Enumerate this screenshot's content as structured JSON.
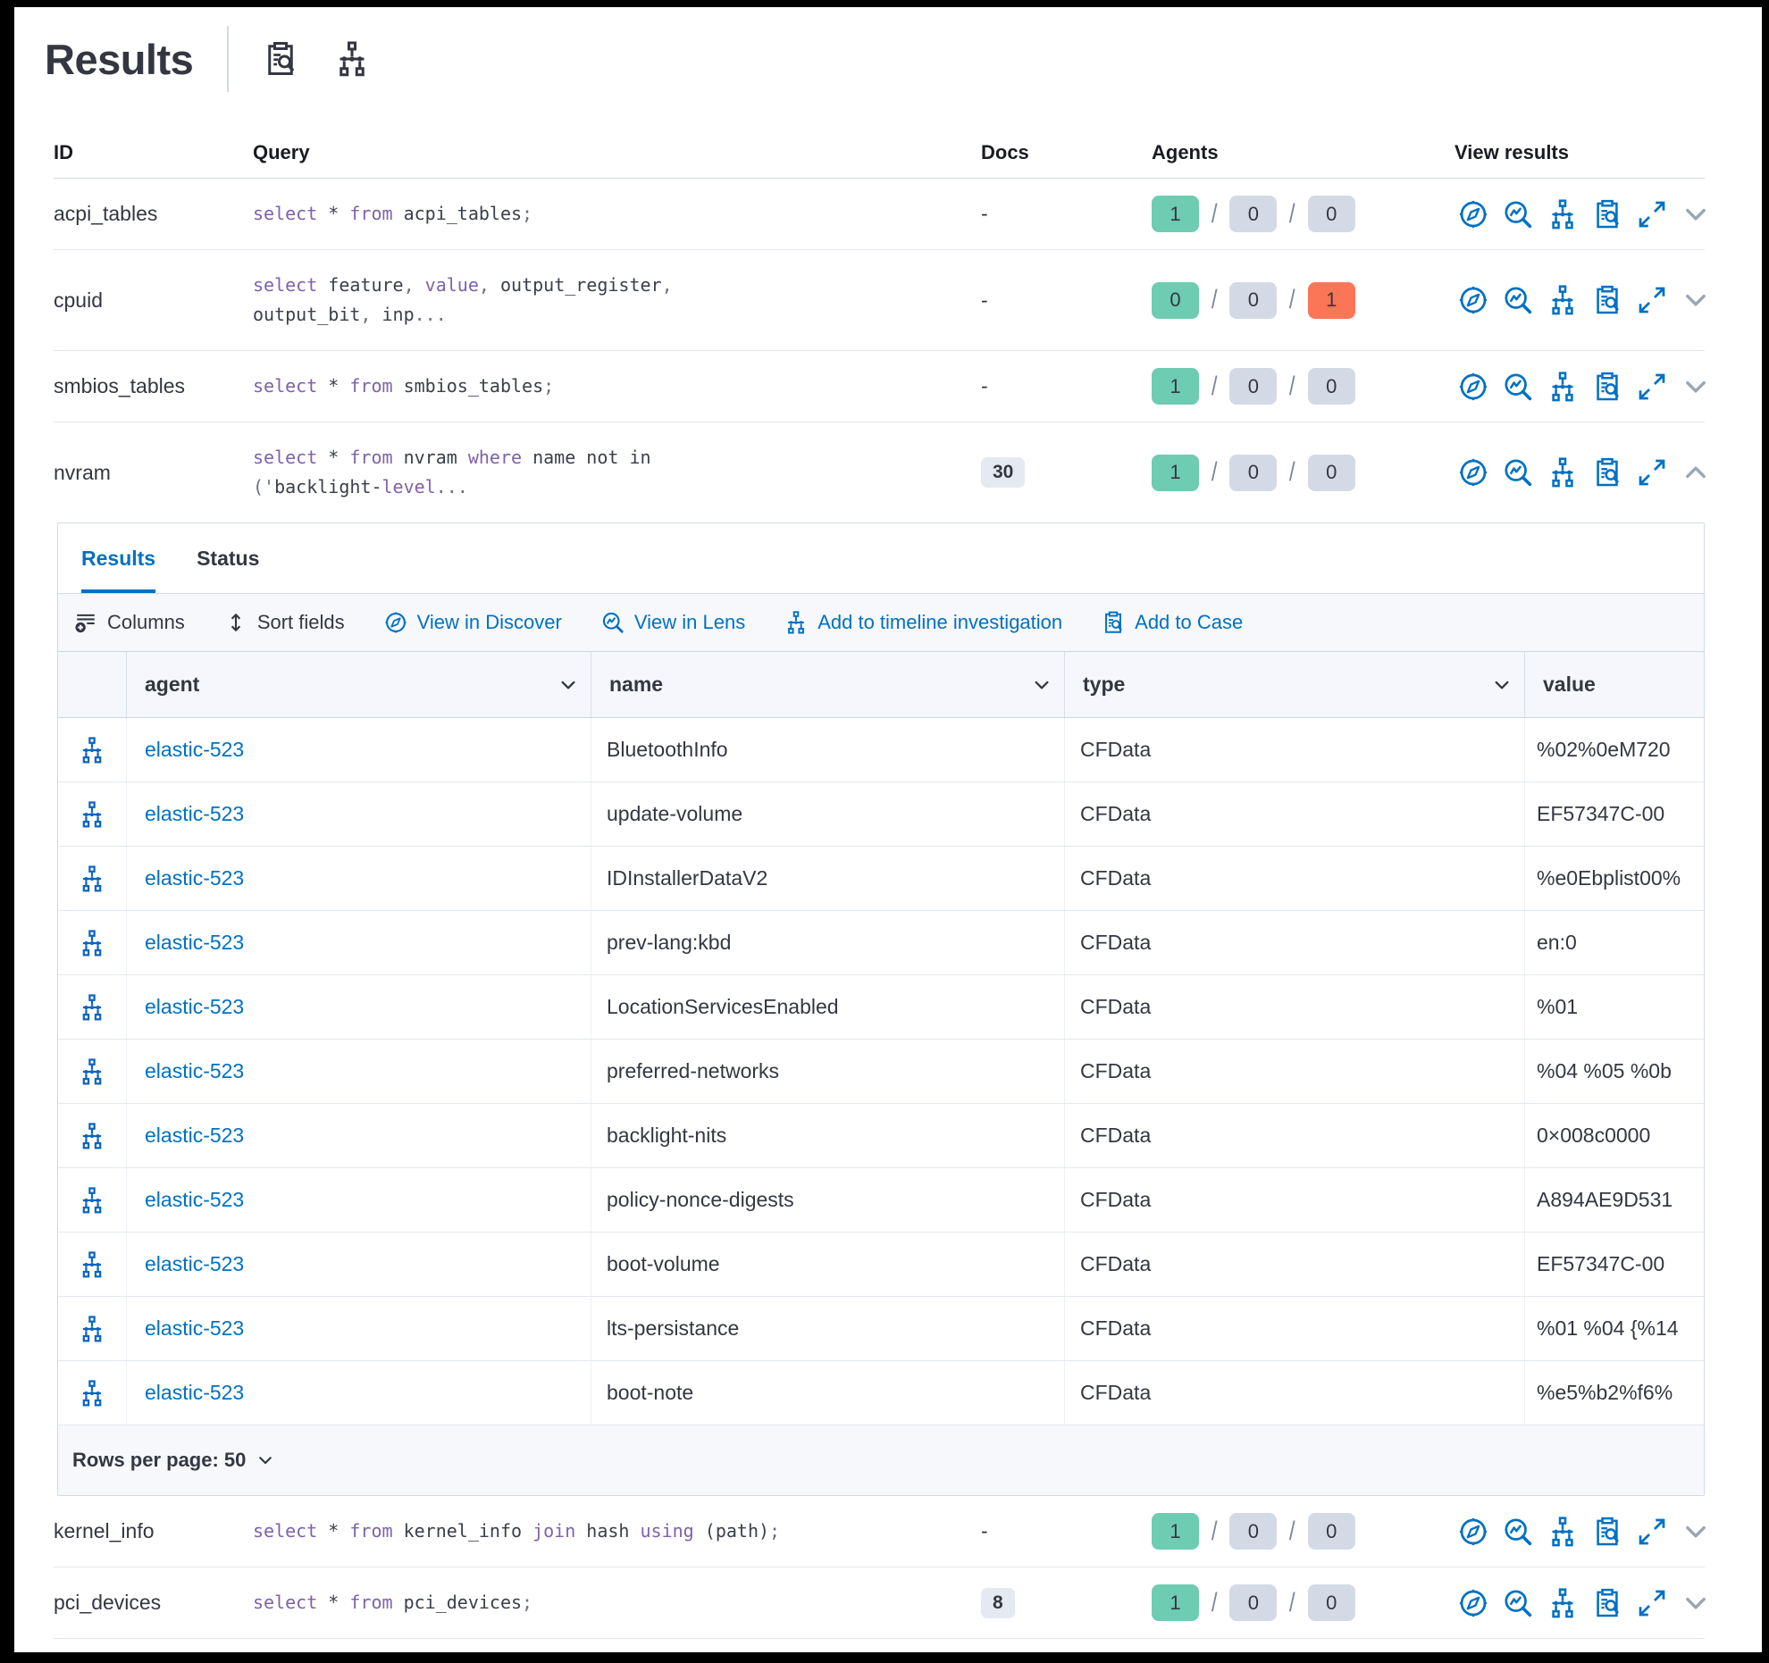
{
  "header": {
    "title": "Results",
    "inspect_icon": "inspect-clipboard-search",
    "tree_icon": "timeline-tree"
  },
  "outer_table": {
    "headers": {
      "id": "ID",
      "query": "Query",
      "docs": "Docs",
      "agents": "Agents",
      "view": "View results"
    }
  },
  "queries": [
    {
      "id": "acpi_tables",
      "docs": "-",
      "agents": {
        "ok": "1",
        "pending": "0",
        "failed": "0",
        "failed_variant": "gray"
      },
      "line1": [
        {
          "t": "select",
          "c": "kw"
        },
        {
          "t": " * ",
          "c": "id"
        },
        {
          "t": "from",
          "c": "kw"
        },
        {
          "t": " acpi_tables",
          "c": "id"
        },
        {
          "t": ";",
          "c": "pun"
        }
      ]
    },
    {
      "id": "cpuid",
      "docs": "-",
      "agents": {
        "ok": "0",
        "pending": "0",
        "failed": "1",
        "failed_variant": "danger"
      },
      "line1": [
        {
          "t": "select",
          "c": "kw"
        },
        {
          "t": " feature",
          "c": "id"
        },
        {
          "t": ", ",
          "c": "pun"
        },
        {
          "t": "value",
          "c": "kw"
        },
        {
          "t": ", ",
          "c": "pun"
        },
        {
          "t": "output_register",
          "c": "id"
        },
        {
          "t": ",",
          "c": "pun"
        }
      ],
      "line2": [
        {
          "t": "output_bit",
          "c": "id"
        },
        {
          "t": ", ",
          "c": "pun"
        },
        {
          "t": "inp",
          "c": "id"
        },
        {
          "t": "...",
          "c": "pun"
        }
      ]
    },
    {
      "id": "smbios_tables",
      "docs": "-",
      "agents": {
        "ok": "1",
        "pending": "0",
        "failed": "0",
        "failed_variant": "gray"
      },
      "line1": [
        {
          "t": "select",
          "c": "kw"
        },
        {
          "t": " * ",
          "c": "id"
        },
        {
          "t": "from",
          "c": "kw"
        },
        {
          "t": " smbios_tables",
          "c": "id"
        },
        {
          "t": ";",
          "c": "pun"
        }
      ]
    },
    {
      "id": "nvram",
      "docs": "30",
      "agents": {
        "ok": "1",
        "pending": "0",
        "failed": "0",
        "failed_variant": "gray"
      },
      "line1": [
        {
          "t": "select",
          "c": "kw"
        },
        {
          "t": " * ",
          "c": "id"
        },
        {
          "t": "from",
          "c": "kw"
        },
        {
          "t": " nvram ",
          "c": "id"
        },
        {
          "t": "where",
          "c": "kw"
        },
        {
          "t": " name not in",
          "c": "id"
        }
      ],
      "line2": [
        {
          "t": "('",
          "c": "pun"
        },
        {
          "t": "backlight-",
          "c": "id"
        },
        {
          "t": "level",
          "c": "kw"
        },
        {
          "t": "...",
          "c": "pun"
        }
      ]
    },
    {
      "id": "kernel_info",
      "docs": "-",
      "agents": {
        "ok": "1",
        "pending": "0",
        "failed": "0",
        "failed_variant": "gray"
      },
      "line1": [
        {
          "t": "select",
          "c": "kw"
        },
        {
          "t": " * ",
          "c": "id"
        },
        {
          "t": "from",
          "c": "kw"
        },
        {
          "t": " kernel_info ",
          "c": "id"
        },
        {
          "t": "join",
          "c": "kw"
        },
        {
          "t": " hash ",
          "c": "id"
        },
        {
          "t": "using",
          "c": "kw"
        },
        {
          "t": " (path)",
          "c": "id"
        },
        {
          "t": ";",
          "c": "pun"
        }
      ]
    },
    {
      "id": "pci_devices",
      "docs": "8",
      "agents": {
        "ok": "1",
        "pending": "0",
        "failed": "0",
        "failed_variant": "gray"
      },
      "line1": [
        {
          "t": "select",
          "c": "kw"
        },
        {
          "t": " * ",
          "c": "id"
        },
        {
          "t": "from",
          "c": "kw"
        },
        {
          "t": " pci_devices",
          "c": "id"
        },
        {
          "t": ";",
          "c": "pun"
        }
      ]
    }
  ],
  "panel": {
    "tabs": {
      "results": "Results",
      "status": "Status"
    },
    "toolbar": {
      "columns": "Columns",
      "sort_fields": "Sort fields",
      "view_discover": "View in Discover",
      "view_lens": "View in Lens",
      "add_timeline": "Add to timeline investigation",
      "add_case": "Add to Case"
    },
    "grid": {
      "headers": {
        "agent": "agent",
        "name": "name",
        "type": "type",
        "value": "value"
      },
      "rows": [
        {
          "agent": "elastic-523",
          "name": "BluetoothInfo",
          "type": "CFData",
          "value": "%02%0eM720"
        },
        {
          "agent": "elastic-523",
          "name": "update-volume",
          "type": "CFData",
          "value": "EF57347C-00"
        },
        {
          "agent": "elastic-523",
          "name": "IDInstallerDataV2",
          "type": "CFData",
          "value": "%e0Ebplist00%"
        },
        {
          "agent": "elastic-523",
          "name": "prev-lang:kbd",
          "type": "CFData",
          "value": "en:0"
        },
        {
          "agent": "elastic-523",
          "name": "LocationServicesEnabled",
          "type": "CFData",
          "value": "%01"
        },
        {
          "agent": "elastic-523",
          "name": "preferred-networks",
          "type": "CFData",
          "value": "%04 %05 %0b"
        },
        {
          "agent": "elastic-523",
          "name": "backlight-nits",
          "type": "CFData",
          "value": "0×008c0000"
        },
        {
          "agent": "elastic-523",
          "name": "policy-nonce-digests",
          "type": "CFData",
          "value": "A894AE9D531"
        },
        {
          "agent": "elastic-523",
          "name": "boot-volume",
          "type": "CFData",
          "value": "EF57347C-00"
        },
        {
          "agent": "elastic-523",
          "name": "lts-persistance",
          "type": "CFData",
          "value": "%01 %04 {%14"
        },
        {
          "agent": "elastic-523",
          "name": "boot-note",
          "type": "CFData",
          "value": "%e5%b2%f6%"
        }
      ]
    },
    "footer": {
      "rows_per_page": "Rows per page: 50"
    }
  }
}
